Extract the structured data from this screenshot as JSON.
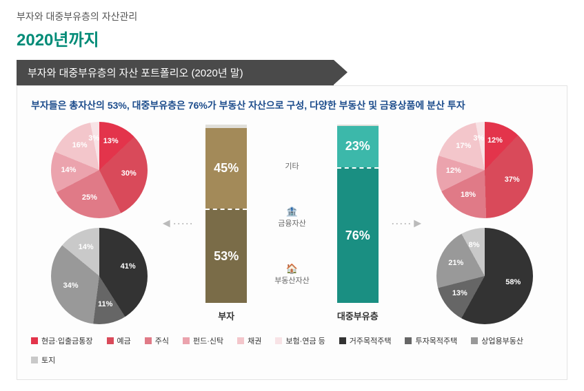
{
  "header": {
    "subtitle": "부자와 대중부유층의 자산관리",
    "title": "2020년까지"
  },
  "banner": "부자와 대중부유층의 자산 포트폴리오 (2020년 말)",
  "description": "부자들은 총자산의 53%, 대중부유층은 76%가 부동산 자산으로 구성, 다양한 부동산 및 금융상품에 분산 투자",
  "bars": {
    "left": {
      "name": "부자",
      "top_pct": 2,
      "top_color": "#e0dfda",
      "mid_pct": 45,
      "mid_label": "45%",
      "mid_color": "#a38a59",
      "bot_pct": 53,
      "bot_label": "53%",
      "bot_color": "#7a6c48"
    },
    "right": {
      "name": "대중부유층",
      "top_pct": 1,
      "top_color": "#e0dfda",
      "mid_pct": 23,
      "mid_label": "23%",
      "mid_color": "#3cb8aa",
      "bot_pct": 76,
      "bot_label": "76%",
      "bot_color": "#1a8f82"
    },
    "center_labels": {
      "top": "기타",
      "mid": "금융자산",
      "bot": "부동산자산"
    }
  },
  "pies": {
    "top_left": {
      "slices": [
        {
          "label": "13%",
          "value": 13,
          "color": "#e3344b"
        },
        {
          "label": "30%",
          "value": 30,
          "color": "#d94a5a"
        },
        {
          "label": "25%",
          "value": 25,
          "color": "#e07a87"
        },
        {
          "label": "14%",
          "value": 14,
          "color": "#eba3ad"
        },
        {
          "label": "16%",
          "value": 16,
          "color": "#f3c6cb"
        },
        {
          "label": "3%",
          "value": 3,
          "color": "#f8e3e6"
        }
      ]
    },
    "bot_left": {
      "slices": [
        {
          "label": "41%",
          "value": 41,
          "color": "#333333"
        },
        {
          "label": "11%",
          "value": 11,
          "color": "#666666"
        },
        {
          "label": "34%",
          "value": 34,
          "color": "#999999"
        },
        {
          "label": "14%",
          "value": 14,
          "color": "#c9c9c9"
        }
      ]
    },
    "top_right": {
      "slices": [
        {
          "label": "12%",
          "value": 12,
          "color": "#e3344b"
        },
        {
          "label": "37%",
          "value": 37,
          "color": "#d94a5a"
        },
        {
          "label": "18%",
          "value": 18,
          "color": "#e07a87"
        },
        {
          "label": "12%",
          "value": 12,
          "color": "#eba3ad"
        },
        {
          "label": "17%",
          "value": 17,
          "color": "#f3c6cb"
        },
        {
          "label": "3%",
          "value": 3,
          "color": "#f8e3e6"
        }
      ]
    },
    "bot_right": {
      "slices": [
        {
          "label": "58%",
          "value": 58,
          "color": "#333333"
        },
        {
          "label": "13%",
          "value": 13,
          "color": "#666666"
        },
        {
          "label": "21%",
          "value": 21,
          "color": "#999999"
        },
        {
          "label": "8%",
          "value": 8,
          "color": "#c9c9c9"
        }
      ]
    }
  },
  "legend": [
    {
      "label": "현금·입출금통장",
      "color": "#e3344b"
    },
    {
      "label": "예금",
      "color": "#d94a5a"
    },
    {
      "label": "주식",
      "color": "#e07a87"
    },
    {
      "label": "펀드·신탁",
      "color": "#eba3ad"
    },
    {
      "label": "채권",
      "color": "#f3c6cb"
    },
    {
      "label": "보험·연금 등",
      "color": "#f8e3e6"
    },
    {
      "label": "거주목적주택",
      "color": "#333333"
    },
    {
      "label": "투자목적주택",
      "color": "#666666"
    },
    {
      "label": "상업용부동산",
      "color": "#999999"
    },
    {
      "label": "토지",
      "color": "#c9c9c9"
    }
  ]
}
